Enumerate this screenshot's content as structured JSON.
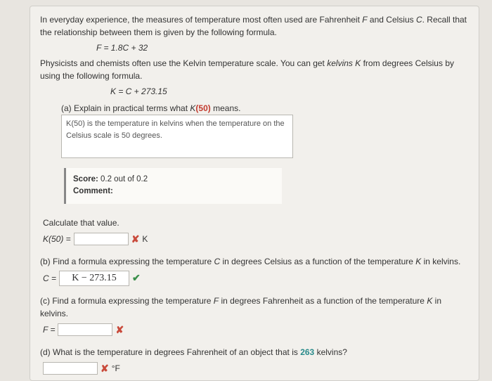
{
  "intro1": "In everyday experience, the measures of temperature most often used are Fahrenheit ",
  "intro1_F": "F",
  "intro1_mid": " and Celsius ",
  "intro1_C": "C",
  "intro1_end": ". Recall that the relationship between them is given by the following formula.",
  "formula1": "F = 1.8C + 32",
  "intro2a": "Physicists and chemists often use the Kelvin temperature scale. You can get ",
  "intro2_kelvins": "kelvins K",
  "intro2b": " from degrees Celsius by using the following formula.",
  "formula2": "K = C + 273.15",
  "part_a_label": "(a) Explain in practical terms what ",
  "part_a_k50": "K",
  "part_a_50": "(50)",
  "part_a_end": " means.",
  "answer_a": "K(50) is the temperature in kelvins when the temperature on the Celsius scale is 50 degrees.",
  "score_label": "Score:",
  "score_value": " 0.2 out of 0.2",
  "comment_label": "Comment:",
  "calc_label": "Calculate that value.",
  "k50_eq": "K(50) =",
  "k_unit": "K",
  "part_b": "(b) Find a formula expressing the temperature ",
  "part_b_C": "C",
  "part_b_mid": " in degrees Celsius as a function of the temperature ",
  "part_b_K": "K",
  "part_b_end": " in kelvins.",
  "c_eq": "C =",
  "c_answer": "K − 273.15",
  "part_c": "(c) Find a formula expressing the temperature ",
  "part_c_F": "F",
  "part_c_mid": " in degrees Fahrenheit as a function of the temperature ",
  "part_c_K": "K",
  "part_c_end": " in kelvins.",
  "f_eq": "F =",
  "part_d1": "(d) What is the temperature in degrees Fahrenheit of an object that is ",
  "part_d_val": "263",
  "part_d2": " kelvins?",
  "f_unit": "°F",
  "mark_wrong": "✘",
  "mark_right": "✔"
}
